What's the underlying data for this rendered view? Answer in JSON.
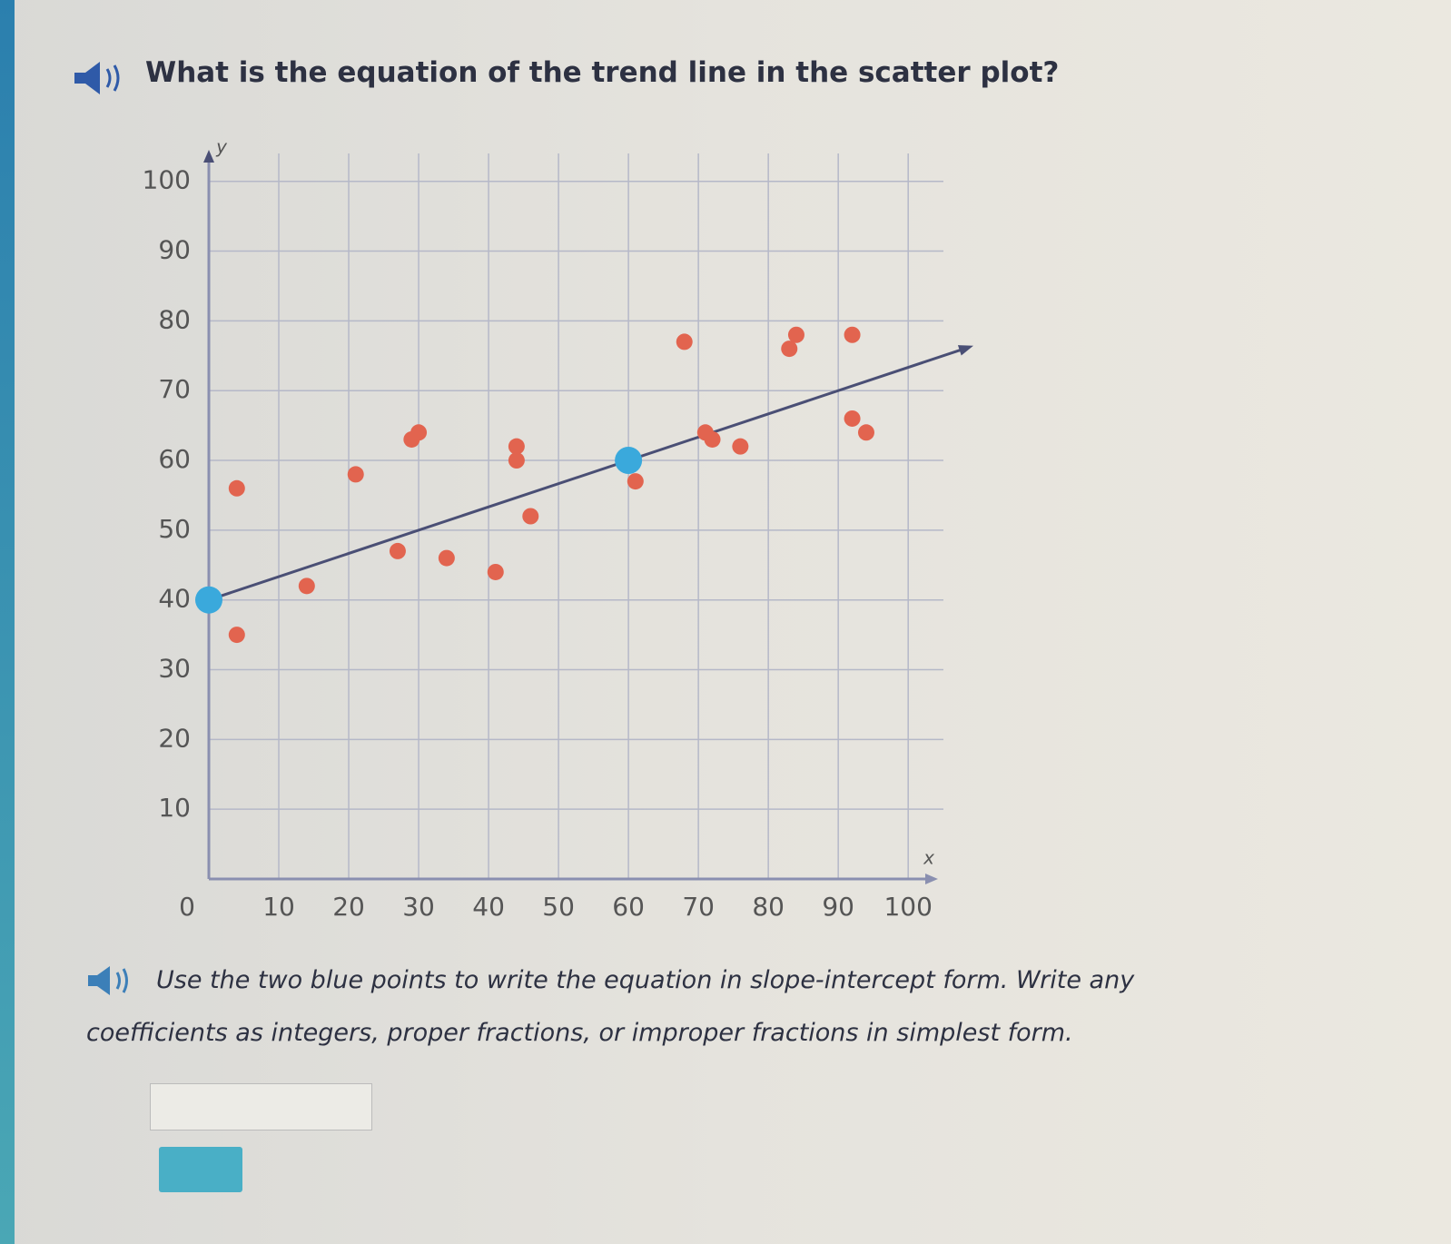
{
  "question": "What is the equation of the trend line in the scatter plot?",
  "chart_data": {
    "type": "scatter",
    "x_label": "x",
    "y_label": "y",
    "xlim": [
      0,
      104
    ],
    "ylim": [
      0,
      104
    ],
    "xticks": [
      0,
      10,
      20,
      30,
      40,
      50,
      60,
      70,
      80,
      90,
      100
    ],
    "yticks": [
      10,
      20,
      30,
      40,
      50,
      60,
      70,
      80,
      90,
      100
    ],
    "grid": true,
    "series": [
      {
        "color": "#e2644f",
        "x": [
          4,
          4,
          14,
          21,
          27,
          29,
          30,
          34,
          41,
          44,
          44,
          46,
          61,
          68,
          71,
          72,
          76,
          83,
          84,
          92,
          92,
          94
        ],
        "values": [
          56,
          35,
          42,
          58,
          47,
          63,
          64,
          46,
          44,
          60,
          62,
          52,
          57,
          77,
          64,
          63,
          62,
          76,
          78,
          78,
          66,
          64
        ]
      },
      {
        "color": "#3aa9dc",
        "x": [
          0,
          60
        ],
        "values": [
          40,
          60
        ]
      }
    ]
  },
  "instruction": [
    "Use the two blue points to write the equation in slope-intercept form. Write any",
    "coefficients as integers, proper fractions, or improper fractions in simplest form."
  ]
}
